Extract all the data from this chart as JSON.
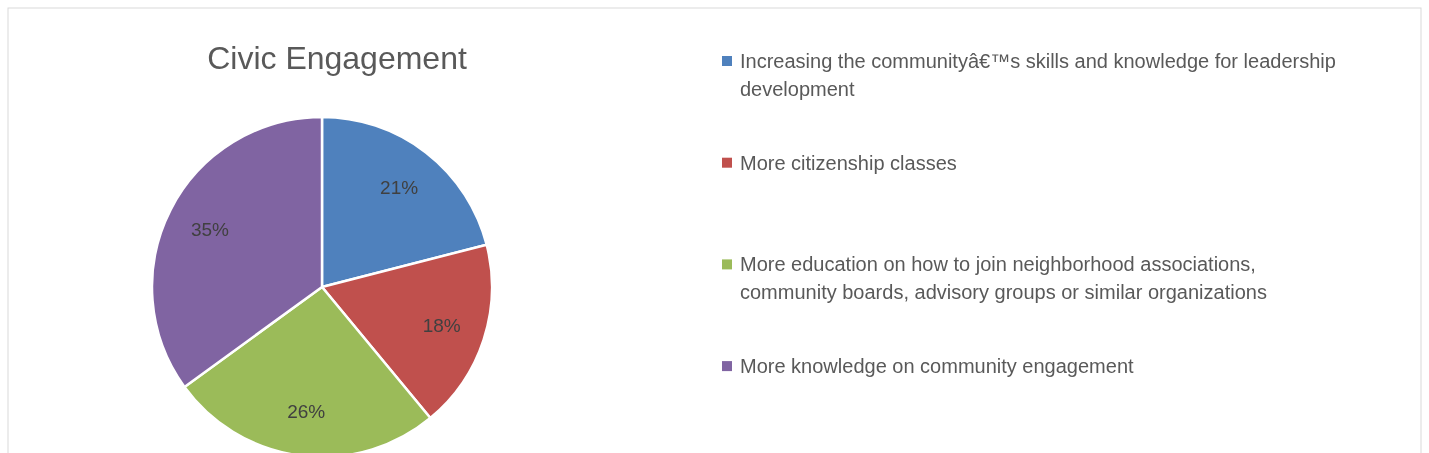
{
  "chart_data": {
    "type": "pie",
    "title": "Civic Engagement",
    "categories": [
      "Increasing the communityâ€™s skills and knowledge for leadership development",
      "More citizenship classes",
      "More education on how to join neighborhood associations, community boards, advisory groups or similar organizations",
      "More knowledge on community engagement"
    ],
    "values": [
      21,
      18,
      26,
      35
    ],
    "colors": [
      "#4f81bd",
      "#c0504d",
      "#9bbb59",
      "#8064a2"
    ],
    "value_labels": [
      "21%",
      "18%",
      "26%",
      "35%"
    ],
    "legend": "right"
  }
}
